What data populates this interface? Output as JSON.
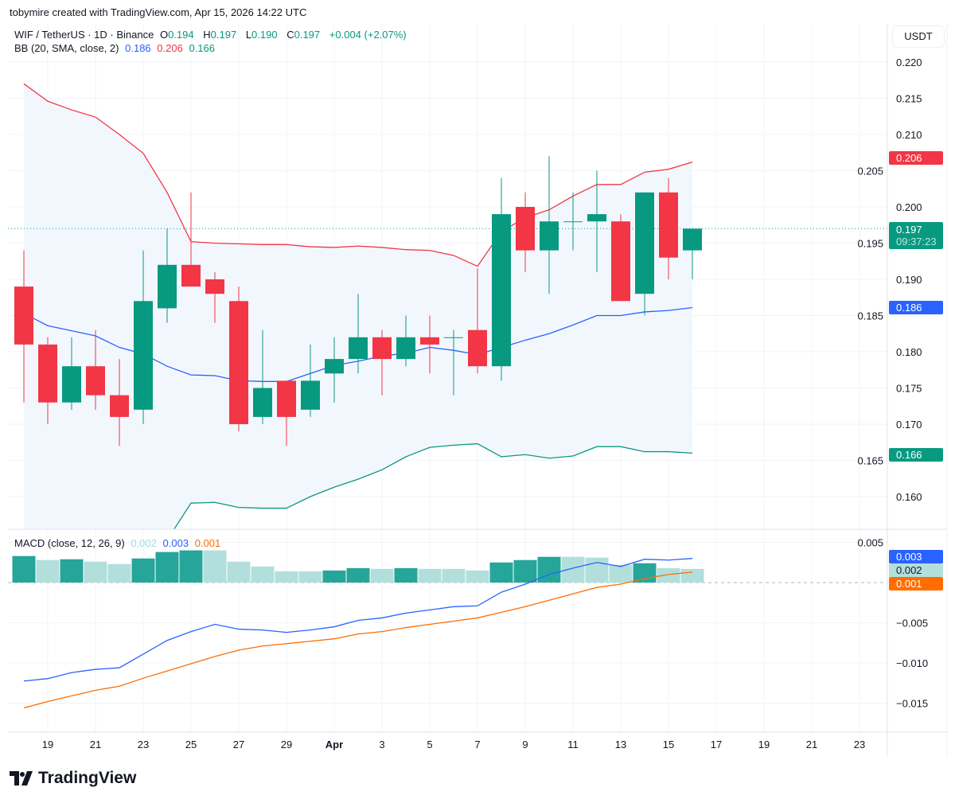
{
  "header": {
    "attribution": "tobymire created with TradingView.com, Apr 15, 2026 14:22 UTC"
  },
  "legend": {
    "symbol": "WIF / TetherUS · 1D · Binance",
    "o_label": "O",
    "o": "0.194",
    "h_label": "H",
    "h": "0.197",
    "l_label": "L",
    "l": "0.190",
    "c_label": "C",
    "c": "0.197",
    "change": "+0.004 (+2.07%)",
    "bb_title": "BB (20, SMA, close, 2)",
    "bb_basis": "0.186",
    "bb_upper": "0.206",
    "bb_lower": "0.166",
    "macd_title": "MACD (close, 12, 26, 9)",
    "macd_hist": "0.002",
    "macd_line": "0.003",
    "macd_signal": "0.001"
  },
  "price_axis": {
    "unit": "USDT",
    "tags": {
      "upper": "0.206",
      "last": "0.197",
      "countdown": "09:37:23",
      "basis": "0.186",
      "lower": "0.166"
    }
  },
  "macd_axis": {
    "tags": {
      "macd": "0.003",
      "hist": "0.002",
      "signal": "0.001"
    }
  },
  "colors": {
    "up": "#089981",
    "down": "#f23645",
    "basis": "#2962ff",
    "upper": "#f23645",
    "lower": "#089981",
    "macd": "#2962ff",
    "signal": "#ff6d00",
    "hist_up_strong": "#26a69a",
    "hist_up_weak": "#b2dfdb",
    "band_fill": "#f2f7fd"
  },
  "logo": {
    "text": "TradingView",
    "icon": "tradingview-logo-icon"
  },
  "chart_data": [
    {
      "type": "candlestick",
      "title": "WIF / TetherUS · 1D · Binance",
      "dates": [
        "Mar 18",
        "Mar 19",
        "Mar 20",
        "Mar 21",
        "Mar 22",
        "Mar 23",
        "Mar 24",
        "Mar 25",
        "Mar 26",
        "Mar 27",
        "Mar 28",
        "Mar 29",
        "Mar 30",
        "Mar 31",
        "Apr 1",
        "Apr 2",
        "Apr 3",
        "Apr 4",
        "Apr 5",
        "Apr 6",
        "Apr 7",
        "Apr 8",
        "Apr 9",
        "Apr 10",
        "Apr 11",
        "Apr 12",
        "Apr 13",
        "Apr 14",
        "Apr 15"
      ],
      "ohlc": [
        [
          0.189,
          0.194,
          0.173,
          0.181
        ],
        [
          0.181,
          0.182,
          0.17,
          0.173
        ],
        [
          0.173,
          0.182,
          0.172,
          0.178
        ],
        [
          0.178,
          0.183,
          0.172,
          0.174
        ],
        [
          0.174,
          0.179,
          0.167,
          0.171
        ],
        [
          0.172,
          0.194,
          0.17,
          0.187
        ],
        [
          0.186,
          0.197,
          0.184,
          0.192
        ],
        [
          0.192,
          0.202,
          0.189,
          0.189
        ],
        [
          0.19,
          0.191,
          0.184,
          0.188
        ],
        [
          0.187,
          0.189,
          0.169,
          0.17
        ],
        [
          0.171,
          0.183,
          0.17,
          0.175
        ],
        [
          0.176,
          0.176,
          0.167,
          0.171
        ],
        [
          0.172,
          0.181,
          0.171,
          0.176
        ],
        [
          0.177,
          0.182,
          0.173,
          0.179
        ],
        [
          0.179,
          0.188,
          0.177,
          0.182
        ],
        [
          0.182,
          0.183,
          0.174,
          0.179
        ],
        [
          0.179,
          0.185,
          0.178,
          0.182
        ],
        [
          0.182,
          0.185,
          0.177,
          0.181
        ],
        [
          0.182,
          0.183,
          0.174,
          0.182
        ],
        [
          0.183,
          0.1915,
          0.177,
          0.178
        ],
        [
          0.178,
          0.204,
          0.176,
          0.199
        ],
        [
          0.2,
          0.202,
          0.191,
          0.194
        ],
        [
          0.194,
          0.207,
          0.188,
          0.198
        ],
        [
          0.198,
          0.202,
          0.194,
          0.198
        ],
        [
          0.198,
          0.205,
          0.191,
          0.199
        ],
        [
          0.198,
          0.199,
          0.187,
          0.187
        ],
        [
          0.188,
          0.202,
          0.185,
          0.202
        ],
        [
          0.202,
          0.204,
          0.19,
          0.193
        ],
        [
          0.194,
          0.197,
          0.19,
          0.197
        ]
      ],
      "bb_upper": [
        0.217,
        0.2146,
        0.2134,
        0.2124,
        0.21,
        0.2074,
        0.202,
        0.1952,
        0.195,
        0.1949,
        0.1948,
        0.1948,
        0.1945,
        0.1944,
        0.1946,
        0.1944,
        0.1941,
        0.194,
        0.1933,
        0.1918,
        0.1966,
        0.1985,
        0.1996,
        0.2015,
        0.2031,
        0.2031,
        0.2048,
        0.2052,
        0.2062
      ],
      "bb_basis": [
        0.1853,
        0.1836,
        0.1829,
        0.1822,
        0.1806,
        0.1797,
        0.178,
        0.1768,
        0.1767,
        0.176,
        0.1759,
        0.1759,
        0.177,
        0.1781,
        0.1787,
        0.1794,
        0.1798,
        0.1806,
        0.1802,
        0.1796,
        0.1806,
        0.1816,
        0.1825,
        0.1837,
        0.185,
        0.185,
        0.1855,
        0.1857,
        0.1861
      ],
      "bb_lower": [
        0.1536,
        0.1526,
        0.1524,
        0.152,
        0.1512,
        0.152,
        0.154,
        0.1591,
        0.1592,
        0.1585,
        0.1584,
        0.1584,
        0.16,
        0.1613,
        0.1624,
        0.1637,
        0.1655,
        0.1668,
        0.1671,
        0.1673,
        0.1655,
        0.1658,
        0.1653,
        0.1656,
        0.1669,
        0.1669,
        0.1662,
        0.1662,
        0.166
      ],
      "last_price": 0.197,
      "ylim": [
        0.156,
        0.226
      ],
      "yticks": [
        "0.220",
        "0.215",
        "0.210",
        "0.205",
        "0.200",
        "0.195",
        "0.190",
        "0.185",
        "0.180",
        "0.175",
        "0.170",
        "0.165",
        "0.160"
      ],
      "xticks": [
        "19",
        "21",
        "23",
        "25",
        "27",
        "29",
        "Apr",
        "3",
        "5",
        "7",
        "9",
        "11",
        "13",
        "15",
        "17",
        "19",
        "21",
        "23"
      ],
      "grid": true
    },
    {
      "type": "bar+line",
      "title": "MACD (close, 12, 26, 9)",
      "histogram": [
        0.0033,
        0.0028,
        0.0029,
        0.0026,
        0.0023,
        0.003,
        0.0038,
        0.004,
        0.004,
        0.0026,
        0.002,
        0.0014,
        0.0014,
        0.0015,
        0.0018,
        0.0017,
        0.0018,
        0.0017,
        0.0017,
        0.0015,
        0.0025,
        0.0028,
        0.0032,
        0.0032,
        0.0031,
        0.0022,
        0.0024,
        0.0018,
        0.0017
      ],
      "macd": [
        -0.01225,
        -0.01195,
        -0.0112,
        -0.0108,
        -0.0106,
        -0.0089,
        -0.0072,
        -0.0061,
        -0.0052,
        -0.0058,
        -0.0059,
        -0.0062,
        -0.0059,
        -0.0055,
        -0.0047,
        -0.0044,
        -0.0038,
        -0.0034,
        -0.003,
        -0.0029,
        -0.0012,
        -0.0002,
        0.001,
        0.0018,
        0.0025,
        0.002,
        0.0029,
        0.0028,
        0.003
      ],
      "signal": [
        -0.0156,
        -0.0148,
        -0.0141,
        -0.0134,
        -0.0129,
        -0.0119,
        -0.011,
        -0.0101,
        -0.0092,
        -0.0084,
        -0.0079,
        -0.0076,
        -0.0073,
        -0.007,
        -0.0064,
        -0.0061,
        -0.0056,
        -0.0052,
        -0.0048,
        -0.0044,
        -0.0037,
        -0.003,
        -0.0022,
        -0.0014,
        -0.0006,
        -0.0002,
        0.0005,
        0.001,
        0.0013
      ],
      "yticks": [
        "0.005",
        "−0.005",
        "−0.010",
        "−0.015"
      ]
    }
  ]
}
